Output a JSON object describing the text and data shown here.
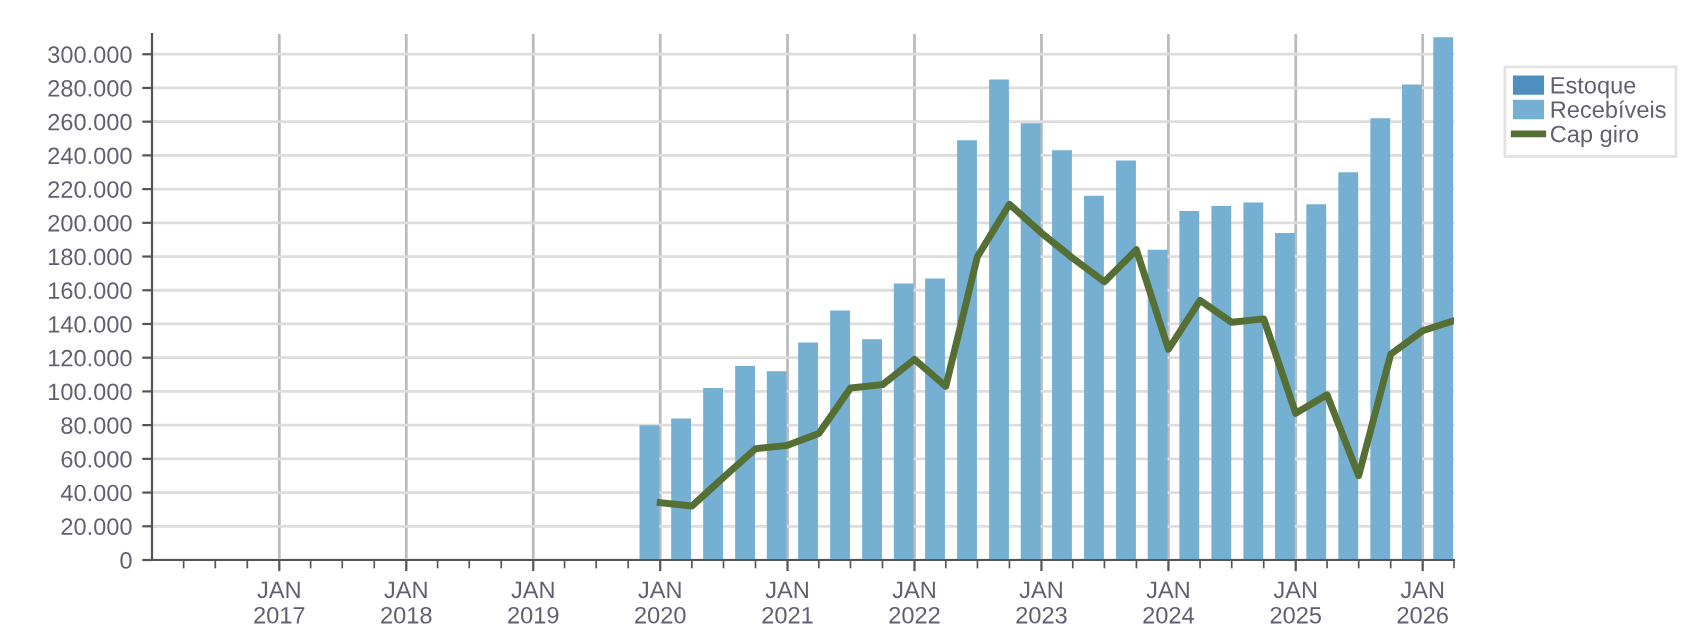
{
  "chart_data": {
    "type": "bar",
    "x": [
      "2019-12",
      "2020-03",
      "2020-06",
      "2020-09",
      "2020-12",
      "2021-03",
      "2021-06",
      "2021-09",
      "2021-12",
      "2022-03",
      "2022-06",
      "2022-09",
      "2022-12",
      "2023-03",
      "2023-06",
      "2023-09",
      "2023-12",
      "2024-03",
      "2024-06",
      "2024-09",
      "2024-12",
      "2025-03",
      "2025-06",
      "2025-09",
      "2025-12",
      "2026-03"
    ],
    "series": [
      {
        "name": "Estoque",
        "color": "#4f8fbf",
        "values": [
          null,
          null,
          null,
          null,
          null,
          null,
          null,
          null,
          null,
          null,
          null,
          null,
          null,
          null,
          null,
          null,
          null,
          null,
          null,
          null,
          null,
          null,
          null,
          null,
          null,
          null
        ]
      },
      {
        "name": "Recebíveis",
        "color": "#75afd1",
        "values": [
          80000,
          84000,
          102000,
          115000,
          112000,
          129000,
          148000,
          131000,
          164000,
          167000,
          249000,
          285000,
          259000,
          243000,
          216000,
          237000,
          184000,
          207000,
          210000,
          212000,
          194000,
          211000,
          230000,
          262000,
          282000,
          310000
        ]
      },
      {
        "name": "Cap giro",
        "type": "line",
        "color": "#566f35",
        "x": [
          "2020-01",
          "2020-04",
          "2020-07",
          "2020-10",
          "2021-01",
          "2021-04",
          "2021-07",
          "2021-10",
          "2022-01",
          "2022-04",
          "2022-07",
          "2022-10",
          "2023-01",
          "2023-04",
          "2023-07",
          "2023-10",
          "2024-01",
          "2024-04",
          "2024-07",
          "2024-10",
          "2025-01",
          "2025-04",
          "2025-07",
          "2025-10",
          "2026-01",
          "2026-04"
        ],
        "values": [
          34000,
          32000,
          49000,
          66000,
          68000,
          75000,
          102000,
          104000,
          119000,
          103000,
          180000,
          211000,
          194000,
          179000,
          165000,
          184000,
          125000,
          154000,
          141000,
          143000,
          87000,
          98000,
          50000,
          122000,
          136000,
          142000
        ]
      }
    ],
    "xlim": [
      "2016-01",
      "2026-04"
    ],
    "xticks": [
      {
        "value": "2017-01",
        "label": "JAN\n2017"
      },
      {
        "value": "2018-01",
        "label": "JAN\n2018"
      },
      {
        "value": "2019-01",
        "label": "JAN\n2019"
      },
      {
        "value": "2020-01",
        "label": "JAN\n2020"
      },
      {
        "value": "2021-01",
        "label": "JAN\n2021"
      },
      {
        "value": "2022-01",
        "label": "JAN\n2022"
      },
      {
        "value": "2023-01",
        "label": "JAN\n2023"
      },
      {
        "value": "2024-01",
        "label": "JAN\n2024"
      },
      {
        "value": "2025-01",
        "label": "JAN\n2025"
      },
      {
        "value": "2026-01",
        "label": "JAN\n2026"
      }
    ],
    "ylim": [
      0,
      312000
    ],
    "yticks": [
      0,
      {
        "value": 20000,
        "label": "20.000"
      },
      {
        "value": 40000,
        "label": "40.000"
      },
      {
        "value": 60000,
        "label": "60.000"
      },
      {
        "value": 80000,
        "label": "80.000"
      },
      {
        "value": 100000,
        "label": "100.000"
      },
      {
        "value": 120000,
        "label": "120.000"
      },
      {
        "value": 140000,
        "label": "140.000"
      },
      {
        "value": 160000,
        "label": "160.000"
      },
      {
        "value": 180000,
        "label": "180.000"
      },
      {
        "value": 200000,
        "label": "200.000"
      },
      {
        "value": 220000,
        "label": "220.000"
      },
      {
        "value": 240000,
        "label": "240.000"
      },
      {
        "value": 260000,
        "label": "260.000"
      },
      {
        "value": 280000,
        "label": "280.000"
      },
      {
        "value": 300000,
        "label": "300.000"
      }
    ],
    "grid": true,
    "legend": "top right",
    "marker": "none",
    "line_style": "solid"
  }
}
